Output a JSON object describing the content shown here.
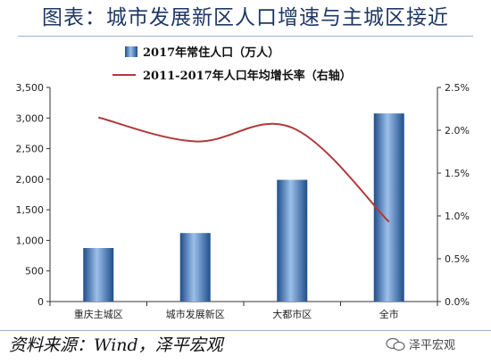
{
  "title": "图表：城市发展新区人口增速与主城区接近",
  "source": "资料来源：Wind，泽平宏观",
  "watermark": "泽平宏观",
  "chart_data": {
    "type": "bar",
    "categories": [
      "重庆主城区",
      "城市发展新区",
      "大都市区",
      "全市"
    ],
    "series": [
      {
        "name": "2017年常住人口（万人）",
        "type": "bar",
        "axis": "left",
        "values": [
          875,
          1120,
          1990,
          3075
        ],
        "color": "#3b7ac4"
      },
      {
        "name": "2011-2017年人口年均增长率（右轴）",
        "type": "line",
        "axis": "right",
        "values": [
          2.15,
          1.87,
          2.03,
          0.93
        ],
        "color": "#b03a3a"
      }
    ],
    "ylim": [
      0,
      3500
    ],
    "yticks": [
      0,
      500,
      1000,
      1500,
      2000,
      2500,
      3000,
      3500
    ],
    "ytick_labels": [
      "0",
      "500",
      "1,000",
      "1,500",
      "2,000",
      "2,500",
      "3,000",
      "3,500"
    ],
    "y2lim": [
      0,
      2.5
    ],
    "y2ticks": [
      0,
      0.5,
      1.0,
      1.5,
      2.0,
      2.5
    ],
    "y2tick_labels": [
      "0.0%",
      "0.5%",
      "1.0%",
      "1.5%",
      "2.0%",
      "2.5%"
    ],
    "grid": false,
    "legend_position": "top-left"
  }
}
